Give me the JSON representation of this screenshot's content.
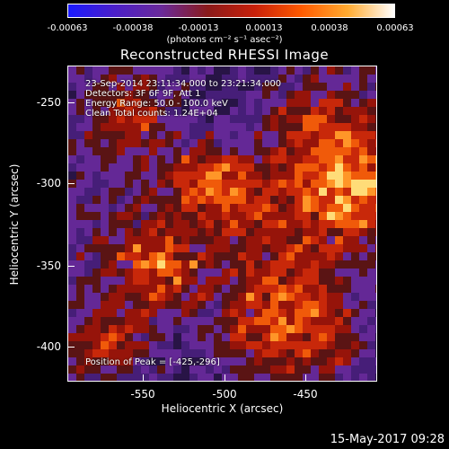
{
  "colorbar": {
    "ticks": [
      "-0.00063",
      "-0.00038",
      "-0.00013",
      "0.00013",
      "0.00038",
      "0.00063"
    ],
    "units": "(photons cm⁻² s⁻¹ asec⁻²)",
    "colors": [
      "#1a1aff",
      "#4b1fc8",
      "#6a2a9a",
      "#8a1a1a",
      "#c8200a",
      "#ff5a00",
      "#ffaa30",
      "#ffffff"
    ]
  },
  "title": "Reconstructed RHESSI Image",
  "info": {
    "time": "23-Sep-2014 23:11:34.000 to 23:21:34.000",
    "detectors": "Detectors: 3F 6F 9F, Att 1",
    "energy": "Energy Range: 50.0 - 100.0 keV",
    "clean": "Clean     Total counts: 1.24E+04",
    "peak": "Position of Peak = [-425,-296]"
  },
  "axes": {
    "xlabel": "Heliocentric X (arcsec)",
    "ylabel": "Heliocentric Y (arcsec)",
    "xticks": [
      "-550",
      "-500",
      "-450"
    ],
    "yticks": [
      "-250",
      "-300",
      "-350",
      "-400"
    ]
  },
  "timestamp": "15-May-2017 09:28"
}
